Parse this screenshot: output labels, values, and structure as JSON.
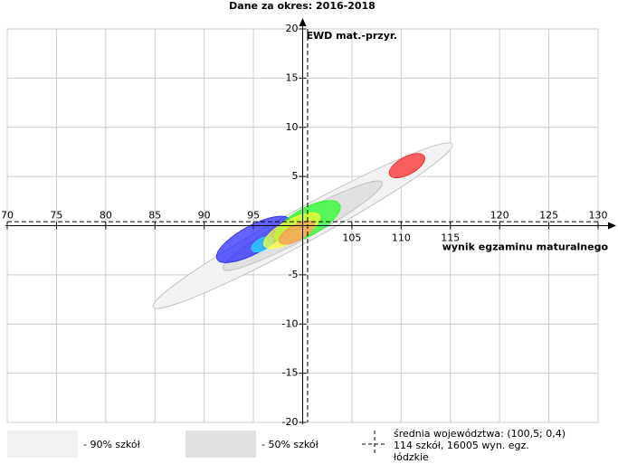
{
  "chart_data": {
    "type": "ellipse-scatter",
    "title": "Dane za okres: 2016-2018",
    "x_label": "wynik egzaminu maturalnego",
    "y_label": "EWD mat.-przyr.",
    "xlim": [
      70,
      130
    ],
    "ylim": [
      -20,
      20
    ],
    "xticks": [
      70,
      75,
      80,
      85,
      90,
      95,
      105,
      110,
      115,
      120,
      125,
      130
    ],
    "yticks": [
      20,
      15,
      10,
      5,
      -5,
      -10,
      -15,
      -20
    ],
    "grid": true,
    "mean": {
      "x": 100.5,
      "y": 0.4
    },
    "bands": [
      {
        "name": "- 90% szkół",
        "color": "#f2f2f2",
        "x": 100,
        "y": 0,
        "a": 17.3,
        "b": 1.7
      },
      {
        "name": "- 50% szkół",
        "color": "#e0e0e0",
        "x": 100,
        "y": 0,
        "a": 9.2,
        "b": 1.3
      }
    ],
    "schools": [
      {
        "color": "#ff2020",
        "x": 110.6,
        "y": 6.1,
        "a": 2.0,
        "b": 0.9
      },
      {
        "color": "#2020ff",
        "x": 95.0,
        "y": -1.4,
        "a": 4.2,
        "b": 1.4
      },
      {
        "color": "#20ff20",
        "x": 100.5,
        "y": 0.4,
        "a": 3.7,
        "b": 1.4
      },
      {
        "color": "#20e0ff",
        "x": 95.9,
        "y": -1.9,
        "a": 1.2,
        "b": 0.6
      },
      {
        "color": "#ffff30",
        "x": 98.9,
        "y": -0.5,
        "a": 3.2,
        "b": 1.1
      },
      {
        "color": "#ff9060",
        "x": 99.4,
        "y": -0.7,
        "a": 2.0,
        "b": 0.8
      }
    ],
    "legend_text": [
      "średnia województwa: (100,5; 0,4)",
      "114 szkół, 16005 wyn. egz.",
      "łódzkie"
    ]
  }
}
